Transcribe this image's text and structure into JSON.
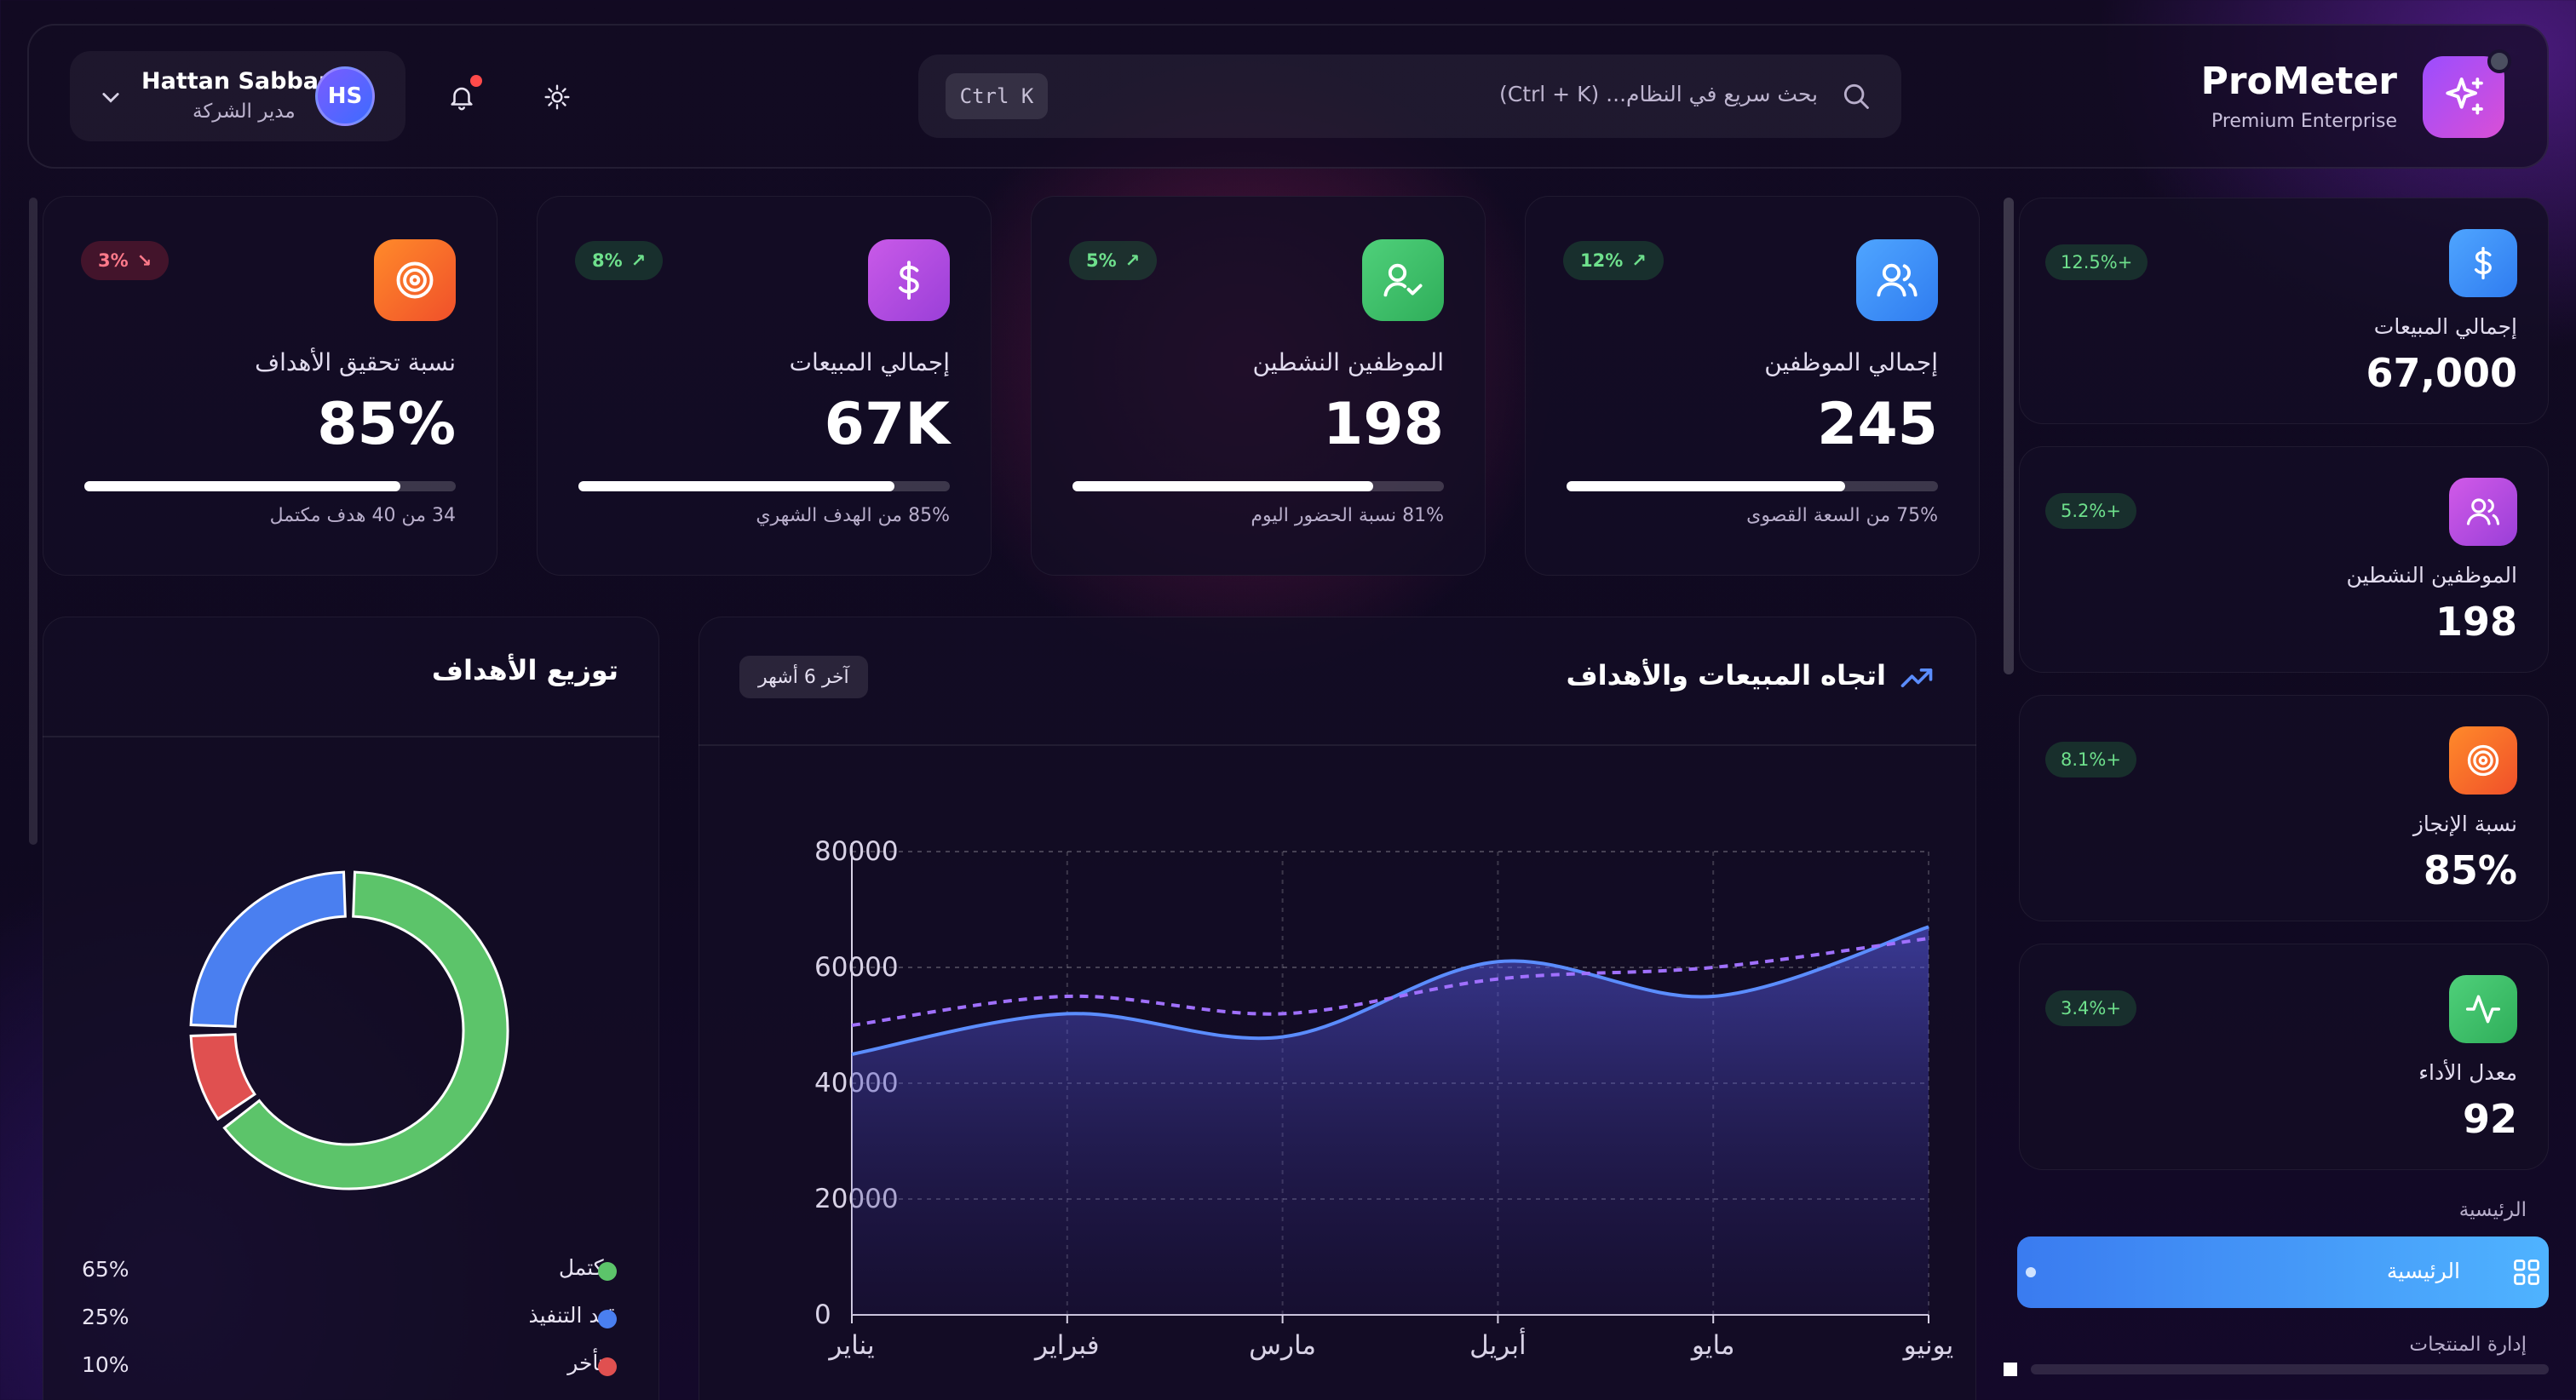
{
  "header": {
    "user_name": "Hattan Sabban",
    "user_role": "مدير الشركة",
    "avatar_initials": "HS",
    "search_shortcut": "Ctrl K",
    "search_placeholder": "بحث سريع في النظام... (Ctrl + K)",
    "brand_title": "ProMeter",
    "brand_subtitle": "Premium Enterprise"
  },
  "kpis": [
    {
      "label": "إجمالي الموظفين",
      "value": "245",
      "badge": "12%",
      "trend": "up",
      "progress": 75,
      "sub": "75% من السعة القصوى",
      "color": "#3d8bff",
      "icon": "users-icon"
    },
    {
      "label": "الموظفين النشطين",
      "value": "198",
      "badge": "5%",
      "trend": "up",
      "progress": 81,
      "sub": "81% نسبة الحضور اليوم",
      "color": "#3fbe6a",
      "icon": "user-check-icon"
    },
    {
      "label": "إجمالي المبيعات",
      "value": "67K",
      "badge": "8%",
      "trend": "up",
      "progress": 85,
      "sub": "85% من الهدف الشهري",
      "color": "#b14fe0",
      "icon": "dollar-icon"
    },
    {
      "label": "نسبة تحقيق الأهداف",
      "value": "85%",
      "badge": "3%",
      "trend": "down",
      "progress": 85,
      "sub": "34 من 40 هدف مكتمل",
      "color": "#ff6a2a",
      "icon": "target-icon"
    }
  ],
  "trend_panel": {
    "title": "اتجاه المبيعات والأهداف",
    "range": "آخر 6 أشهر"
  },
  "goals_panel": {
    "title": "توزيع الأهداف",
    "legend": [
      {
        "label": "مكتمل",
        "value": "65%",
        "color": "#5cc46a"
      },
      {
        "label": "قيد التنفيذ",
        "value": "25%",
        "color": "#4a7ff0"
      },
      {
        "label": "متأخر",
        "value": "10%",
        "color": "#e05050"
      }
    ]
  },
  "chart_data": [
    {
      "type": "area",
      "categories": [
        "يناير",
        "فبراير",
        "مارس",
        "أبريل",
        "مايو",
        "يونيو"
      ],
      "ylim": [
        0,
        80000
      ],
      "yticks": [
        "0",
        "20000",
        "40000",
        "60000",
        "80000"
      ],
      "series": [
        {
          "values": [
            45000,
            52000,
            48000,
            61000,
            55000,
            67000
          ],
          "color": "#5b8dff",
          "style": "solid-area"
        },
        {
          "values": [
            50000,
            55000,
            52000,
            58000,
            60000,
            65000
          ],
          "color": "#a070ff",
          "style": "dashed"
        }
      ],
      "grid": true
    },
    {
      "type": "pie",
      "slices": [
        {
          "label": "مكتمل",
          "value": 65,
          "color": "#5cc46a"
        },
        {
          "label": "متأخر",
          "value": 10,
          "color": "#e05050"
        },
        {
          "label": "قيد التنفيذ",
          "value": 25,
          "color": "#4a7ff0"
        }
      ]
    }
  ],
  "side_stats": [
    {
      "label": "إجمالي المبيعات",
      "value": "67,000",
      "badge": "12.5%+",
      "color": "#3d8bff",
      "icon": "dollar-icon"
    },
    {
      "label": "الموظفين النشطين",
      "value": "198",
      "badge": "5.2%+",
      "color": "#b14fe0",
      "icon": "users-icon"
    },
    {
      "label": "نسبة الإنجاز",
      "value": "85%",
      "badge": "8.1%+",
      "color": "#ff6a2a",
      "icon": "target-icon"
    },
    {
      "label": "معدل الأداء",
      "value": "92",
      "badge": "3.4%+",
      "color": "#3fbe6a",
      "icon": "activity-icon"
    }
  ],
  "nav": {
    "section_label": "الرئيسية",
    "active_item": "الرئيسية",
    "next_item": "إدارة المنتجات"
  }
}
